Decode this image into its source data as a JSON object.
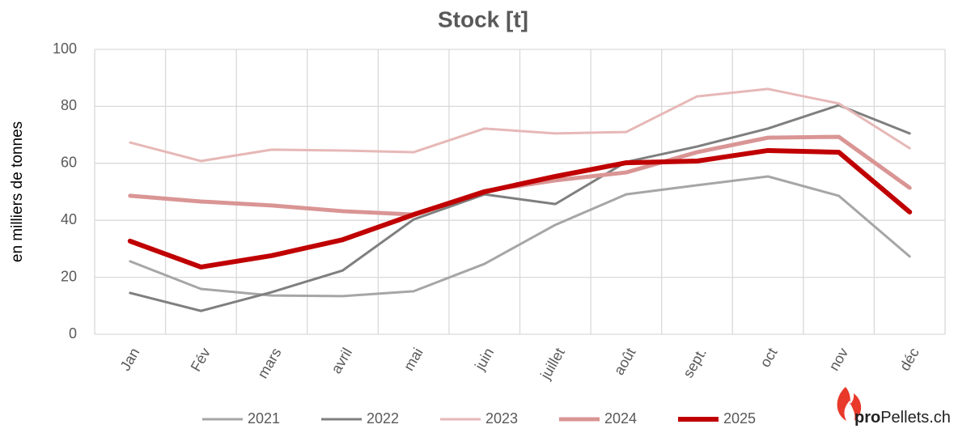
{
  "chart_data": {
    "type": "line",
    "title": "Stock [t]",
    "ylabel": "en milliers de tonnes",
    "categories": [
      "Jan",
      "Fév",
      "mars",
      "avril",
      "mai",
      "juin",
      "juillet",
      "août",
      "sept.",
      "oct",
      "nov",
      "déc"
    ],
    "series": [
      {
        "name": "2021",
        "color": "#a6a6a6",
        "values": [
          25.6,
          15.9,
          13.6,
          13.4,
          15.1,
          24.7,
          38.4,
          49.1,
          52.3,
          55.4,
          48.6,
          27.3
        ]
      },
      {
        "name": "2022",
        "color": "#7f7f7f",
        "values": [
          14.5,
          8.2,
          14.8,
          22.4,
          40.3,
          49.1,
          45.7,
          60.5,
          65.9,
          72.2,
          80.4,
          70.5
        ]
      },
      {
        "name": "2023",
        "color": "#e6b8b7",
        "values": [
          67.3,
          60.8,
          64.8,
          64.5,
          63.9,
          72.2,
          70.5,
          71.0,
          83.5,
          86.1,
          81.0,
          65.3
        ]
      },
      {
        "name": "2024",
        "color": "#d99594",
        "values": [
          48.6,
          46.6,
          45.2,
          43.2,
          42.0,
          50.3,
          54.0,
          56.8,
          63.9,
          69.0,
          69.3,
          51.4
        ]
      },
      {
        "name": "2025",
        "color": "#c00000",
        "values": [
          32.7,
          23.6,
          27.6,
          33.2,
          42.0,
          50.0,
          55.4,
          60.2,
          60.8,
          64.5,
          63.9,
          42.9
        ]
      }
    ],
    "ylim": [
      0,
      100
    ],
    "yticks": [
      0,
      20,
      40,
      60,
      80,
      100
    ],
    "grid": true,
    "legend": "bottom"
  },
  "logo": {
    "bold": "pro",
    "rest": "Pellets.ch"
  }
}
